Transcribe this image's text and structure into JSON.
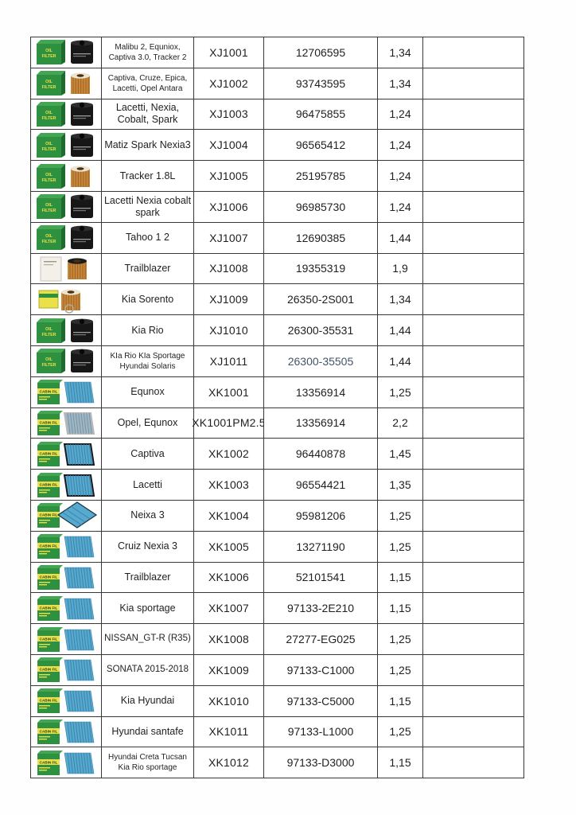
{
  "document": {
    "kind": "parts-price-list",
    "background": "#fefefe"
  },
  "colors": {
    "table_border": "#383838",
    "text": "#1f1f1f",
    "muted_oem": "#44546a",
    "box_green_front": "#2e9140",
    "box_green_top": "#44a654",
    "box_green_side": "#1f6b2e",
    "box_label_yellow": "#e9e04a",
    "box_white": "#f2f0e8",
    "filter_black": "#171717",
    "filter_black_top": "#2d2d2d",
    "cartridge_tan": "#c8863a",
    "cartridge_pleat": "#9c6524",
    "cartridge_cap": "#ece5d2",
    "panel_blue": "#57a9cf",
    "panel_pleat": "#3c84ab",
    "panel_gray": "#9fb6c4",
    "panel_gray_pleat": "#7a93a3",
    "panel_frame_dark": "#1a1a1a",
    "panel_frame_silver": "#b8b8b8"
  },
  "table": {
    "columns": [
      "image",
      "vehicle",
      "part_number",
      "oem_number",
      "price",
      "notes"
    ],
    "rows": [
      {
        "image": "oil-black",
        "vehicle": "Malibu 2, Equniox, Captiva 3.0, Tracker 2",
        "small": true,
        "part": "XJ1001",
        "oem": "12706595",
        "price": "1,34",
        "note": ""
      },
      {
        "image": "oil-cartridge",
        "vehicle": "Captiva,  Cruze,  Epica, Lacetti, Opel Antara",
        "small": true,
        "part": "XJ1002",
        "oem": "93743595",
        "price": "1,34",
        "note": ""
      },
      {
        "image": "oil-black",
        "vehicle": "Lacetti, Nexia, Cobalt, Spark",
        "part": "XJ1003",
        "oem": "96475855",
        "price": "1,24",
        "note": ""
      },
      {
        "image": "oil-black",
        "vehicle": "Matiz Spark Nexia3",
        "part": "XJ1004",
        "oem": "96565412",
        "price": "1,24",
        "note": ""
      },
      {
        "image": "oil-cartridge",
        "vehicle": "Tracker 1.8L",
        "part": "XJ1005",
        "oem": "25195785",
        "price": "1,24",
        "note": ""
      },
      {
        "image": "oil-black",
        "vehicle": "Lacetti Nexia cobalt spark",
        "part": "XJ1006",
        "oem": "96985730",
        "price": "1,24",
        "note": ""
      },
      {
        "image": "oil-black",
        "vehicle": "Tahoo 1 2",
        "part": "XJ1007",
        "oem": "12690385",
        "price": "1,44",
        "note": ""
      },
      {
        "image": "oil-white",
        "vehicle": "Trailblazer",
        "part": "XJ1008",
        "oem": "19355319",
        "price": "1,9",
        "note": ""
      },
      {
        "image": "oil-yellow",
        "vehicle": "Kia Sorento",
        "part": "XJ1009",
        "oem": "26350-2S001",
        "price": "1,34",
        "note": ""
      },
      {
        "image": "oil-black",
        "vehicle": "Kia Rio",
        "part": "XJ1010",
        "oem": "26300-35531",
        "price": "1,44",
        "note": ""
      },
      {
        "image": "oil-black",
        "vehicle": "KIa Rio KIa Sportage Hyundai Solaris",
        "small": true,
        "part": "XJ1011",
        "oem": "26300-35505",
        "oem_muted": true,
        "price": "1,44",
        "note": ""
      },
      {
        "image": "cabin",
        "vehicle": "Equnox",
        "part": "XK1001",
        "oem": "13356914",
        "price": "1,25",
        "note": ""
      },
      {
        "image": "cabin-gray",
        "vehicle": "Opel, Equnox",
        "part": "XK1001PM2.5",
        "oem": "13356914",
        "price": "2,2",
        "note": ""
      },
      {
        "image": "cabin-framed",
        "vehicle": "Captiva",
        "part": "XK1002",
        "oem": "96440878",
        "price": "1,45",
        "note": ""
      },
      {
        "image": "cabin-framed",
        "vehicle": "Lacetti",
        "part": "XK1003",
        "oem": "96554421",
        "price": "1,35",
        "note": ""
      },
      {
        "image": "cabin-diamond",
        "vehicle": "Neixa 3",
        "part": "XK1004",
        "oem": "95981206",
        "price": "1,25",
        "note": ""
      },
      {
        "image": "cabin",
        "vehicle": "Cruiz Nexia 3",
        "part": "XK1005",
        "oem": "13271190",
        "price": "1,25",
        "note": ""
      },
      {
        "image": "cabin",
        "vehicle": "Trailblazer",
        "part": "XK1006",
        "oem": "52101541",
        "price": "1,15",
        "note": ""
      },
      {
        "image": "cabin",
        "vehicle": "Kia sportage",
        "part": "XK1007",
        "oem": "97133-2E210",
        "price": "1,15",
        "note": ""
      },
      {
        "image": "cabin",
        "vehicle": "NISSAN_GT-R (R35)",
        "fit": true,
        "part": "XK1008",
        "oem": "27277-EG025",
        "price": "1,25",
        "note": ""
      },
      {
        "image": "cabin",
        "vehicle": "SONATA 2015-2018",
        "fit": true,
        "part": "XK1009",
        "oem": "97133-C1000",
        "price": "1,25",
        "note": ""
      },
      {
        "image": "cabin",
        "vehicle": "Kia Hyundai",
        "part": "XK1010",
        "oem": "97133-C5000",
        "price": "1,15",
        "note": ""
      },
      {
        "image": "cabin",
        "vehicle": "Hyundai santafe",
        "part": "XK1011",
        "oem": "97133-L1000",
        "price": "1,25",
        "note": ""
      },
      {
        "image": "cabin",
        "vehicle": "Hyundai Creta Tucsan Kia Rio sportage",
        "small": true,
        "part": "XK1012",
        "oem": "97133-D3000",
        "price": "1,15",
        "note": ""
      }
    ]
  }
}
